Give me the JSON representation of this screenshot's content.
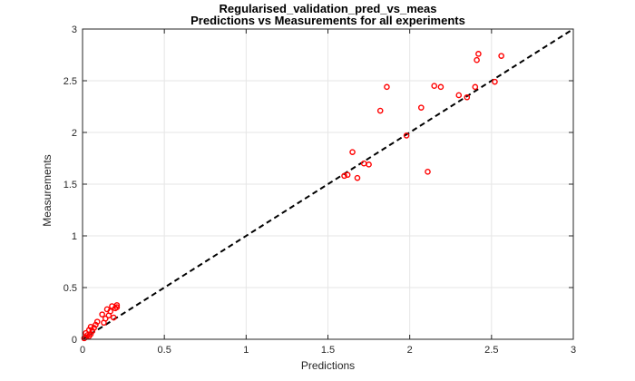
{
  "chart_data": {
    "type": "scatter",
    "title": "Regularised_validation_pred_vs_meas",
    "subtitle": "Predictions vs Measurements for all experiments",
    "xlabel": "Predictions",
    "ylabel": "Measurements",
    "xlim": [
      0,
      3
    ],
    "ylim": [
      0,
      3
    ],
    "x_ticks": [
      "0",
      "0.5",
      "1",
      "1.5",
      "2",
      "2.5",
      "3"
    ],
    "y_ticks": [
      "0",
      "0.5",
      "1",
      "1.5",
      "2",
      "2.5",
      "3"
    ],
    "grid": true,
    "marker": "circle-open",
    "colors": {
      "points": "#ff0000",
      "reference_line": "#000000",
      "grid": "#e6e6e6",
      "axes": "#262626"
    },
    "reference_line": {
      "style": "dashed",
      "from": [
        0,
        0
      ],
      "to": [
        3,
        3
      ]
    },
    "points": [
      {
        "x": 0.01,
        "y": 0.01
      },
      {
        "x": 0.02,
        "y": 0.02
      },
      {
        "x": 0.03,
        "y": 0.04
      },
      {
        "x": 0.02,
        "y": 0.06
      },
      {
        "x": 0.04,
        "y": 0.03
      },
      {
        "x": 0.05,
        "y": 0.05
      },
      {
        "x": 0.04,
        "y": 0.09
      },
      {
        "x": 0.06,
        "y": 0.08
      },
      {
        "x": 0.05,
        "y": 0.12
      },
      {
        "x": 0.07,
        "y": 0.11
      },
      {
        "x": 0.08,
        "y": 0.14
      },
      {
        "x": 0.09,
        "y": 0.17
      },
      {
        "x": 0.12,
        "y": 0.24
      },
      {
        "x": 0.13,
        "y": 0.16
      },
      {
        "x": 0.14,
        "y": 0.2
      },
      {
        "x": 0.15,
        "y": 0.29
      },
      {
        "x": 0.16,
        "y": 0.23
      },
      {
        "x": 0.17,
        "y": 0.27
      },
      {
        "x": 0.18,
        "y": 0.32
      },
      {
        "x": 0.19,
        "y": 0.21
      },
      {
        "x": 0.2,
        "y": 0.3
      },
      {
        "x": 0.21,
        "y": 0.33
      },
      {
        "x": 0.21,
        "y": 0.31
      },
      {
        "x": 1.6,
        "y": 1.58
      },
      {
        "x": 1.62,
        "y": 1.59
      },
      {
        "x": 1.65,
        "y": 1.81
      },
      {
        "x": 1.68,
        "y": 1.56
      },
      {
        "x": 1.72,
        "y": 1.7
      },
      {
        "x": 1.75,
        "y": 1.69
      },
      {
        "x": 1.82,
        "y": 2.21
      },
      {
        "x": 1.86,
        "y": 2.44
      },
      {
        "x": 1.98,
        "y": 1.97
      },
      {
        "x": 2.07,
        "y": 2.24
      },
      {
        "x": 2.11,
        "y": 1.62
      },
      {
        "x": 2.15,
        "y": 2.45
      },
      {
        "x": 2.19,
        "y": 2.44
      },
      {
        "x": 2.3,
        "y": 2.36
      },
      {
        "x": 2.35,
        "y": 2.34
      },
      {
        "x": 2.4,
        "y": 2.44
      },
      {
        "x": 2.41,
        "y": 2.7
      },
      {
        "x": 2.42,
        "y": 2.76
      },
      {
        "x": 2.52,
        "y": 2.49
      },
      {
        "x": 2.56,
        "y": 2.74
      }
    ]
  }
}
